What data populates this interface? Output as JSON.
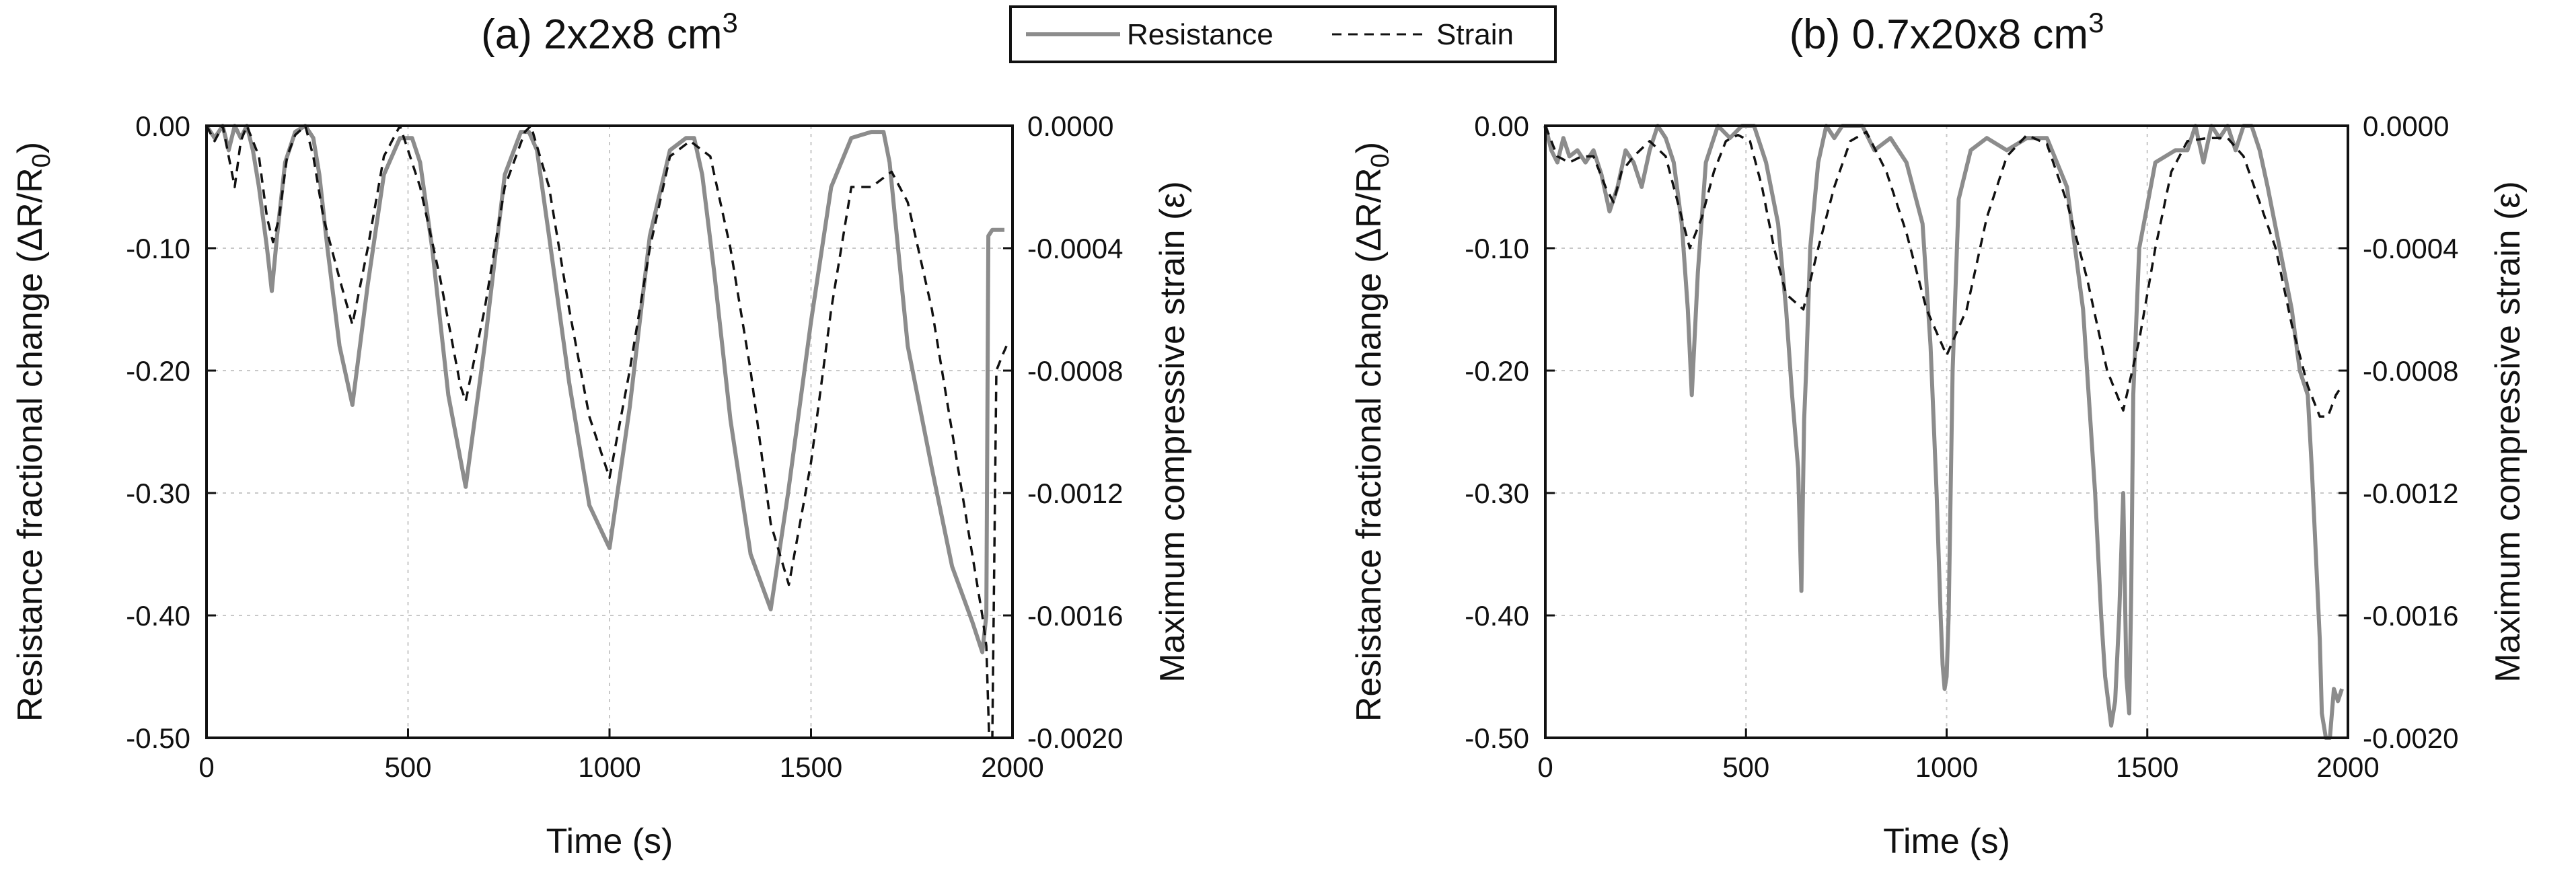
{
  "legend": {
    "resistance_label": "Resistance",
    "strain_label": "Strain"
  },
  "chart_data": [
    {
      "type": "line",
      "title": "(a) 2x2x8 cm",
      "title_superscript": "3",
      "xlabel": "Time (s)",
      "ylabel": "Resistance fractional change (ΔR/R",
      "ylabel_subscript": "0",
      "ylabel_suffix": ")",
      "y2label": "Maximum compressive strain (ε)",
      "xlim": [
        0,
        2000
      ],
      "ylim": [
        -0.5,
        0.0
      ],
      "y2lim": [
        -0.002,
        0.0
      ],
      "xticks": [
        "0",
        "500",
        "1000",
        "1500",
        "2000"
      ],
      "yticks": [
        "0.00",
        "-0.10",
        "-0.20",
        "-0.30",
        "-0.40",
        "-0.50"
      ],
      "y2ticks": [
        "0.0000",
        "-0.0004",
        "-0.0008",
        "-0.0012",
        "-0.0016",
        "-0.0020"
      ],
      "grid": true,
      "series": [
        {
          "name": "Resistance",
          "axis": "left",
          "color": "#8c8c8c",
          "style": "solid",
          "x": [
            0,
            20,
            40,
            55,
            70,
            85,
            100,
            115,
            130,
            150,
            162,
            175,
            195,
            220,
            245,
            265,
            280,
            300,
            330,
            362,
            400,
            440,
            480,
            510,
            530,
            560,
            600,
            643,
            690,
            740,
            780,
            800,
            820,
            850,
            900,
            950,
            1000,
            1050,
            1100,
            1150,
            1190,
            1210,
            1230,
            1260,
            1300,
            1350,
            1400,
            1443,
            1500,
            1550,
            1600,
            1650,
            1680,
            1695,
            1710,
            1740,
            1800,
            1850,
            1900,
            1925,
            1935,
            1940,
            1950,
            1970,
            1980
          ],
          "y": [
            0,
            -0.01,
            0,
            -0.02,
            0,
            -0.01,
            0,
            -0.02,
            -0.05,
            -0.1,
            -0.135,
            -0.09,
            -0.03,
            -0.005,
            0,
            -0.01,
            -0.04,
            -0.1,
            -0.18,
            -0.228,
            -0.13,
            -0.04,
            -0.01,
            -0.01,
            -0.03,
            -0.1,
            -0.22,
            -0.295,
            -0.18,
            -0.04,
            -0.005,
            -0.005,
            -0.02,
            -0.09,
            -0.21,
            -0.31,
            -0.345,
            -0.23,
            -0.09,
            -0.02,
            -0.01,
            -0.01,
            -0.04,
            -0.12,
            -0.24,
            -0.35,
            -0.395,
            -0.3,
            -0.16,
            -0.05,
            -0.01,
            -0.005,
            -0.005,
            -0.03,
            -0.08,
            -0.18,
            -0.28,
            -0.36,
            -0.405,
            -0.43,
            -0.4,
            -0.09,
            -0.085,
            -0.085,
            -0.085
          ]
        },
        {
          "name": "Strain",
          "axis": "right",
          "color": "#111111",
          "style": "dashed",
          "x": [
            0,
            20,
            40,
            55,
            70,
            85,
            100,
            115,
            130,
            150,
            165,
            180,
            200,
            220,
            245,
            265,
            290,
            330,
            362,
            400,
            440,
            480,
            530,
            580,
            630,
            643,
            690,
            740,
            790,
            805,
            850,
            900,
            950,
            1000,
            1050,
            1100,
            1150,
            1200,
            1250,
            1300,
            1350,
            1400,
            1445,
            1500,
            1550,
            1600,
            1650,
            1700,
            1740,
            1800,
            1850,
            1900,
            1925,
            1935,
            1942,
            1950,
            1960,
            1975,
            1985
          ],
          "y": [
            0,
            -5e-05,
            0,
            -0.0001,
            -0.0002,
            -5e-05,
            0,
            -5e-05,
            -0.0001,
            -0.0003,
            -0.00038,
            -0.0003,
            -0.0001,
            -3e-05,
            0,
            -0.0001,
            -0.0003,
            -0.0005,
            -0.00065,
            -0.0004,
            -0.0001,
            0,
            -0.0002,
            -0.0005,
            -0.00085,
            -0.0009,
            -0.0006,
            -0.0002,
            -2e-05,
            0,
            -0.0002,
            -0.0006,
            -0.00095,
            -0.00115,
            -0.0008,
            -0.0004,
            -0.0001,
            -5e-05,
            -0.0001,
            -0.0004,
            -0.0008,
            -0.0013,
            -0.0015,
            -0.0011,
            -0.0006,
            -0.0002,
            -0.0002,
            -0.00015,
            -0.00025,
            -0.0006,
            -0.001,
            -0.0014,
            -0.0016,
            -0.0017,
            -0.002,
            -0.002,
            -0.0008,
            -0.00075,
            -0.00072
          ]
        }
      ]
    },
    {
      "type": "line",
      "title": "(b) 0.7x20x8 cm",
      "title_superscript": "3",
      "xlabel": "Time (s)",
      "ylabel": "Resistance fractional change (ΔR/R",
      "ylabel_subscript": "0",
      "ylabel_suffix": ")",
      "y2label": "Maximum compressive strain (ε)",
      "xlim": [
        0,
        2000
      ],
      "ylim": [
        -0.5,
        0.0
      ],
      "y2lim": [
        -0.002,
        0.0
      ],
      "xticks": [
        "0",
        "500",
        "1000",
        "1500",
        "2000"
      ],
      "yticks": [
        "0.00",
        "-0.10",
        "-0.20",
        "-0.30",
        "-0.40",
        "-0.50"
      ],
      "y2ticks": [
        "0.0000",
        "-0.0004",
        "-0.0008",
        "-0.0012",
        "-0.0016",
        "-0.0020"
      ],
      "grid": true,
      "series": [
        {
          "name": "Resistance",
          "axis": "left",
          "color": "#8c8c8c",
          "style": "solid",
          "x": [
            0,
            15,
            30,
            45,
            60,
            80,
            100,
            120,
            140,
            160,
            180,
            200,
            220,
            240,
            260,
            280,
            300,
            320,
            340,
            355,
            365,
            380,
            400,
            430,
            460,
            490,
            520,
            550,
            580,
            600,
            615,
            625,
            630,
            638,
            645,
            650,
            660,
            680,
            700,
            720,
            740,
            760,
            790,
            820,
            860,
            900,
            940,
            960,
            975,
            985,
            990,
            995,
            1000,
            1005,
            1015,
            1030,
            1060,
            1100,
            1150,
            1200,
            1250,
            1300,
            1340,
            1370,
            1385,
            1395,
            1410,
            1420,
            1430,
            1440,
            1448,
            1455,
            1460,
            1465,
            1480,
            1520,
            1570,
            1600,
            1620,
            1640,
            1660,
            1680,
            1700,
            1720,
            1740,
            1760,
            1780,
            1800,
            1830,
            1860,
            1880,
            1900,
            1910,
            1920,
            1930,
            1935,
            1945,
            1955,
            1965,
            1975,
            1985
          ],
          "y": [
            0,
            -0.02,
            -0.03,
            -0.01,
            -0.025,
            -0.02,
            -0.03,
            -0.02,
            -0.04,
            -0.07,
            -0.05,
            -0.02,
            -0.03,
            -0.05,
            -0.02,
            0,
            -0.01,
            -0.03,
            -0.08,
            -0.15,
            -0.22,
            -0.12,
            -0.03,
            0,
            -0.01,
            0,
            0,
            -0.03,
            -0.08,
            -0.15,
            -0.22,
            -0.26,
            -0.28,
            -0.38,
            -0.24,
            -0.2,
            -0.1,
            -0.03,
            0,
            -0.01,
            0,
            0,
            0,
            -0.02,
            -0.01,
            -0.03,
            -0.08,
            -0.18,
            -0.3,
            -0.4,
            -0.44,
            -0.46,
            -0.45,
            -0.4,
            -0.2,
            -0.06,
            -0.02,
            -0.01,
            -0.02,
            -0.01,
            -0.01,
            -0.05,
            -0.15,
            -0.3,
            -0.4,
            -0.45,
            -0.49,
            -0.47,
            -0.4,
            -0.3,
            -0.45,
            -0.48,
            -0.38,
            -0.22,
            -0.1,
            -0.03,
            -0.02,
            -0.02,
            0,
            -0.03,
            0,
            -0.01,
            0,
            -0.02,
            0,
            0,
            -0.02,
            -0.05,
            -0.1,
            -0.15,
            -0.2,
            -0.22,
            -0.28,
            -0.35,
            -0.42,
            -0.48,
            -0.5,
            -0.5,
            -0.46,
            -0.47,
            -0.46
          ]
        },
        {
          "name": "Strain",
          "axis": "right",
          "color": "#111111",
          "style": "dashed",
          "x": [
            0,
            30,
            60,
            90,
            120,
            150,
            170,
            190,
            220,
            260,
            300,
            330,
            360,
            390,
            420,
            450,
            480,
            510,
            540,
            570,
            600,
            643,
            680,
            720,
            760,
            800,
            850,
            900,
            950,
            1000,
            1050,
            1100,
            1150,
            1200,
            1250,
            1300,
            1350,
            1400,
            1440,
            1480,
            1520,
            1560,
            1600,
            1650,
            1700,
            1740,
            1780,
            1820,
            1860,
            1900,
            1930,
            1950,
            1970,
            1985
          ],
          "y": [
            0,
            -0.0001,
            -0.00012,
            -0.0001,
            -0.0001,
            -0.0002,
            -0.00025,
            -0.00015,
            -0.0001,
            -5e-05,
            -0.0001,
            -0.00025,
            -0.0004,
            -0.0003,
            -0.00015,
            -5e-05,
            -3e-05,
            -5e-05,
            -0.0002,
            -0.0004,
            -0.00055,
            -0.0006,
            -0.0004,
            -0.0002,
            -5e-05,
            -2e-05,
            -0.00015,
            -0.00035,
            -0.0006,
            -0.00075,
            -0.0006,
            -0.0003,
            -0.0001,
            -3e-05,
            -6e-05,
            -0.00025,
            -0.0005,
            -0.0008,
            -0.00093,
            -0.0007,
            -0.0004,
            -0.00015,
            -5e-05,
            -4e-05,
            -4e-05,
            -0.0001,
            -0.00025,
            -0.0004,
            -0.00065,
            -0.00085,
            -0.00095,
            -0.00095,
            -0.00088,
            -0.00085
          ]
        }
      ]
    }
  ]
}
